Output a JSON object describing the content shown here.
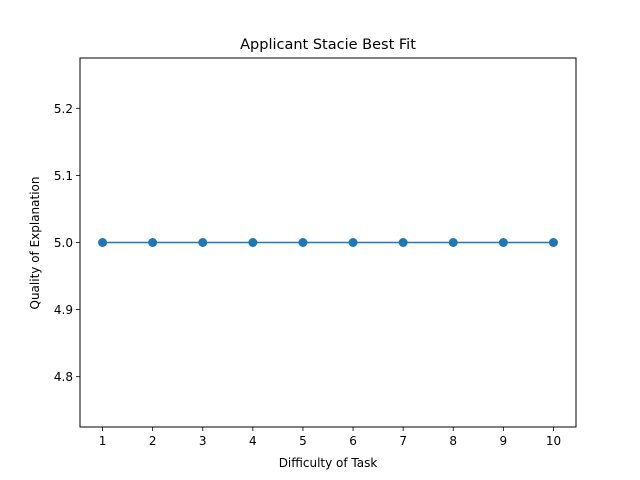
{
  "chart_data": {
    "type": "line",
    "title": "Applicant Stacie Best Fit",
    "xlabel": "Difficulty of Task",
    "ylabel": "Quality of Explanation",
    "x": [
      1,
      2,
      3,
      4,
      5,
      6,
      7,
      8,
      9,
      10
    ],
    "series": [
      {
        "values": [
          5.0,
          5.0,
          5.0,
          5.0,
          5.0,
          5.0,
          5.0,
          5.0,
          5.0,
          5.0
        ],
        "color": "#1f77b4",
        "marker": "circle"
      }
    ],
    "xlim": [
      0.55,
      10.45
    ],
    "ylim": [
      4.725,
      5.275
    ],
    "xticks": [
      "1",
      "2",
      "3",
      "4",
      "5",
      "6",
      "7",
      "8",
      "9",
      "10"
    ],
    "yticks": [
      "4.8",
      "4.9",
      "5.0",
      "5.1",
      "5.2"
    ],
    "grid": false,
    "legend": false
  }
}
